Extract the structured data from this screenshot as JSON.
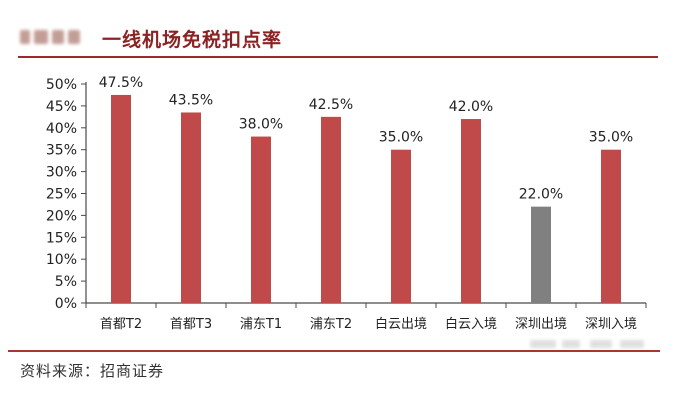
{
  "header": {
    "title": "一线机场免税扣点率"
  },
  "source": {
    "text": "资料来源：招商证券"
  },
  "colors": {
    "accent": "#9b2b2b",
    "bar": "#c04a4a",
    "bar_highlight": "#808080",
    "axis": "#4a4a4a"
  },
  "chart_data": {
    "type": "bar",
    "title": "一线机场免税扣点率",
    "categories": [
      "首都T2",
      "首都T3",
      "浦东T1",
      "浦东T2",
      "白云出境",
      "白云入境",
      "深圳出境",
      "深圳入境"
    ],
    "values": [
      47.5,
      43.5,
      38.0,
      42.5,
      35.0,
      42.0,
      22.0,
      35.0
    ],
    "value_labels": [
      "47.5%",
      "43.5%",
      "38.0%",
      "42.5%",
      "35.0%",
      "42.0%",
      "22.0%",
      "35.0%"
    ],
    "bar_colors": [
      "#c04a4a",
      "#c04a4a",
      "#c04a4a",
      "#c04a4a",
      "#c04a4a",
      "#c04a4a",
      "#808080",
      "#c04a4a"
    ],
    "y_ticks": [
      0,
      5,
      10,
      15,
      20,
      25,
      30,
      35,
      40,
      45,
      50
    ],
    "y_tick_labels": [
      "0%",
      "5%",
      "10%",
      "15%",
      "20%",
      "25%",
      "30%",
      "35%",
      "40%",
      "45%",
      "50%"
    ],
    "ylim": [
      0,
      50
    ],
    "xlabel": "",
    "ylabel": "",
    "grid": false,
    "legend": "none"
  }
}
